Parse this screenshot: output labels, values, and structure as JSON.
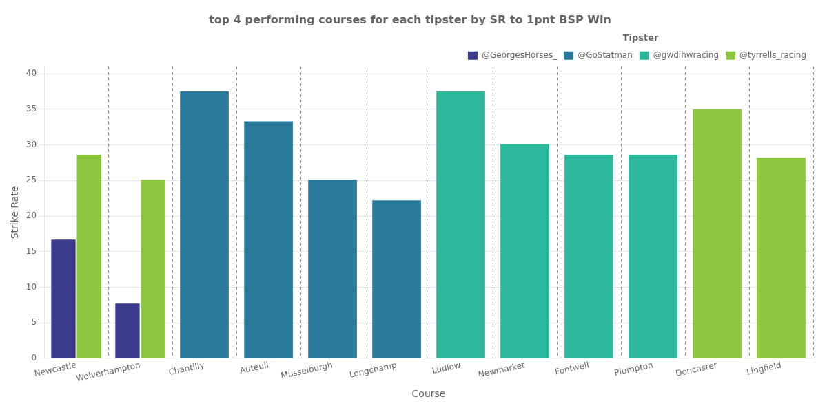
{
  "chart_data": {
    "type": "bar",
    "title": "top 4 performing courses for each tipster by SR to 1pnt BSP Win",
    "xlabel": "Course",
    "ylabel": "Strike Rate",
    "categories": [
      "Newcastle",
      "Wolverhampton",
      "Chantilly",
      "Auteuil",
      "Musselburgh",
      "Longchamp",
      "Ludlow",
      "Newmarket",
      "Fontwell",
      "Plumpton",
      "Doncaster",
      "Lingfield"
    ],
    "series": [
      {
        "name": "@GeorgesHorses_",
        "color": "#3b3b8e",
        "values": [
          16.7,
          7.7,
          null,
          null,
          null,
          null,
          null,
          null,
          null,
          null,
          null,
          null
        ]
      },
      {
        "name": "@GoStatman",
        "color": "#2a7b9b",
        "values": [
          null,
          null,
          37.5,
          33.3,
          25.1,
          22.2,
          null,
          null,
          null,
          null,
          null,
          null
        ]
      },
      {
        "name": "@gwdihwracing",
        "color": "#2db89e",
        "values": [
          null,
          null,
          null,
          null,
          null,
          null,
          37.5,
          30.1,
          28.6,
          28.6,
          null,
          null
        ]
      },
      {
        "name": "@tyrrells_racing",
        "color": "#8dc63f",
        "values": [
          28.6,
          25.1,
          null,
          null,
          null,
          null,
          null,
          null,
          null,
          null,
          35.0,
          28.2
        ]
      }
    ],
    "ylim": [
      0,
      41
    ],
    "yticks": [
      0,
      5,
      10,
      15,
      20,
      25,
      30,
      35,
      40
    ],
    "grid": true,
    "legend": "upper right",
    "legend_title": "Tipster"
  }
}
